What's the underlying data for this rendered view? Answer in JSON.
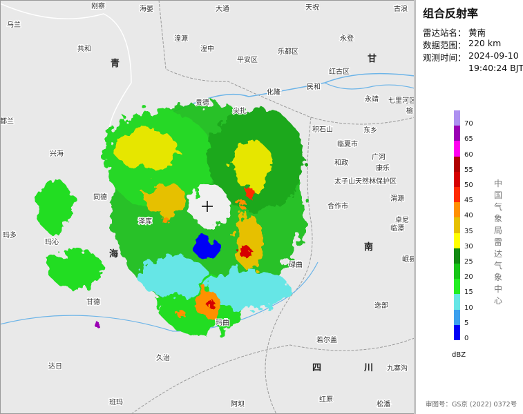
{
  "panel": {
    "title": "组合反射率",
    "station_label": "雷达站名：",
    "station": "黄南",
    "range_label": "数据范围：",
    "range": "220 km",
    "time_label": "观测时间：",
    "date": "2024-09-10",
    "clock": "19:40:24 BJT"
  },
  "colorbar": {
    "ticks": [
      0,
      5,
      10,
      15,
      20,
      25,
      30,
      35,
      40,
      45,
      50,
      55,
      60,
      65,
      70
    ],
    "colors": [
      "#0000f6",
      "#3ca0ee",
      "#66e6e6",
      "#22ee22",
      "#17c517",
      "#128a12",
      "#ffff00",
      "#e6c000",
      "#ff9000",
      "#ff2a00",
      "#d60000",
      "#b00000",
      "#ff00f0",
      "#9a00b4",
      "#ad90f0"
    ],
    "unit": "dBZ"
  },
  "credit": "中国气象局雷达气象中心",
  "footer": "审图号：GS京 (2022) 0372号",
  "map_labels": [
    "乌兰",
    "刚察",
    "海晏",
    "大通",
    "天祝",
    "古浪",
    "共和",
    "湟源",
    "湟中",
    "平安区",
    "乐都区",
    "永登",
    "青",
    "甘",
    "红古区",
    "民和",
    "化隆",
    "永靖",
    "七里河区",
    "榆中",
    "贵德",
    "尖扎",
    "积石山",
    "东乡",
    "都兰",
    "兴海",
    "临夏市",
    "广河",
    "和政",
    "康乐",
    "太子山天然林保护区",
    "渭源",
    "玛多",
    "同德",
    "合作市",
    "卓尼",
    "临潭",
    "玛沁",
    "海",
    "南",
    "碌曲",
    "岷县",
    "迭部",
    "甘德",
    "久治",
    "玛曲",
    "若尔盖",
    "达日",
    "四",
    "川",
    "九寨沟",
    "班玛",
    "阿坝",
    "红原",
    "松潘",
    "泽库"
  ]
}
